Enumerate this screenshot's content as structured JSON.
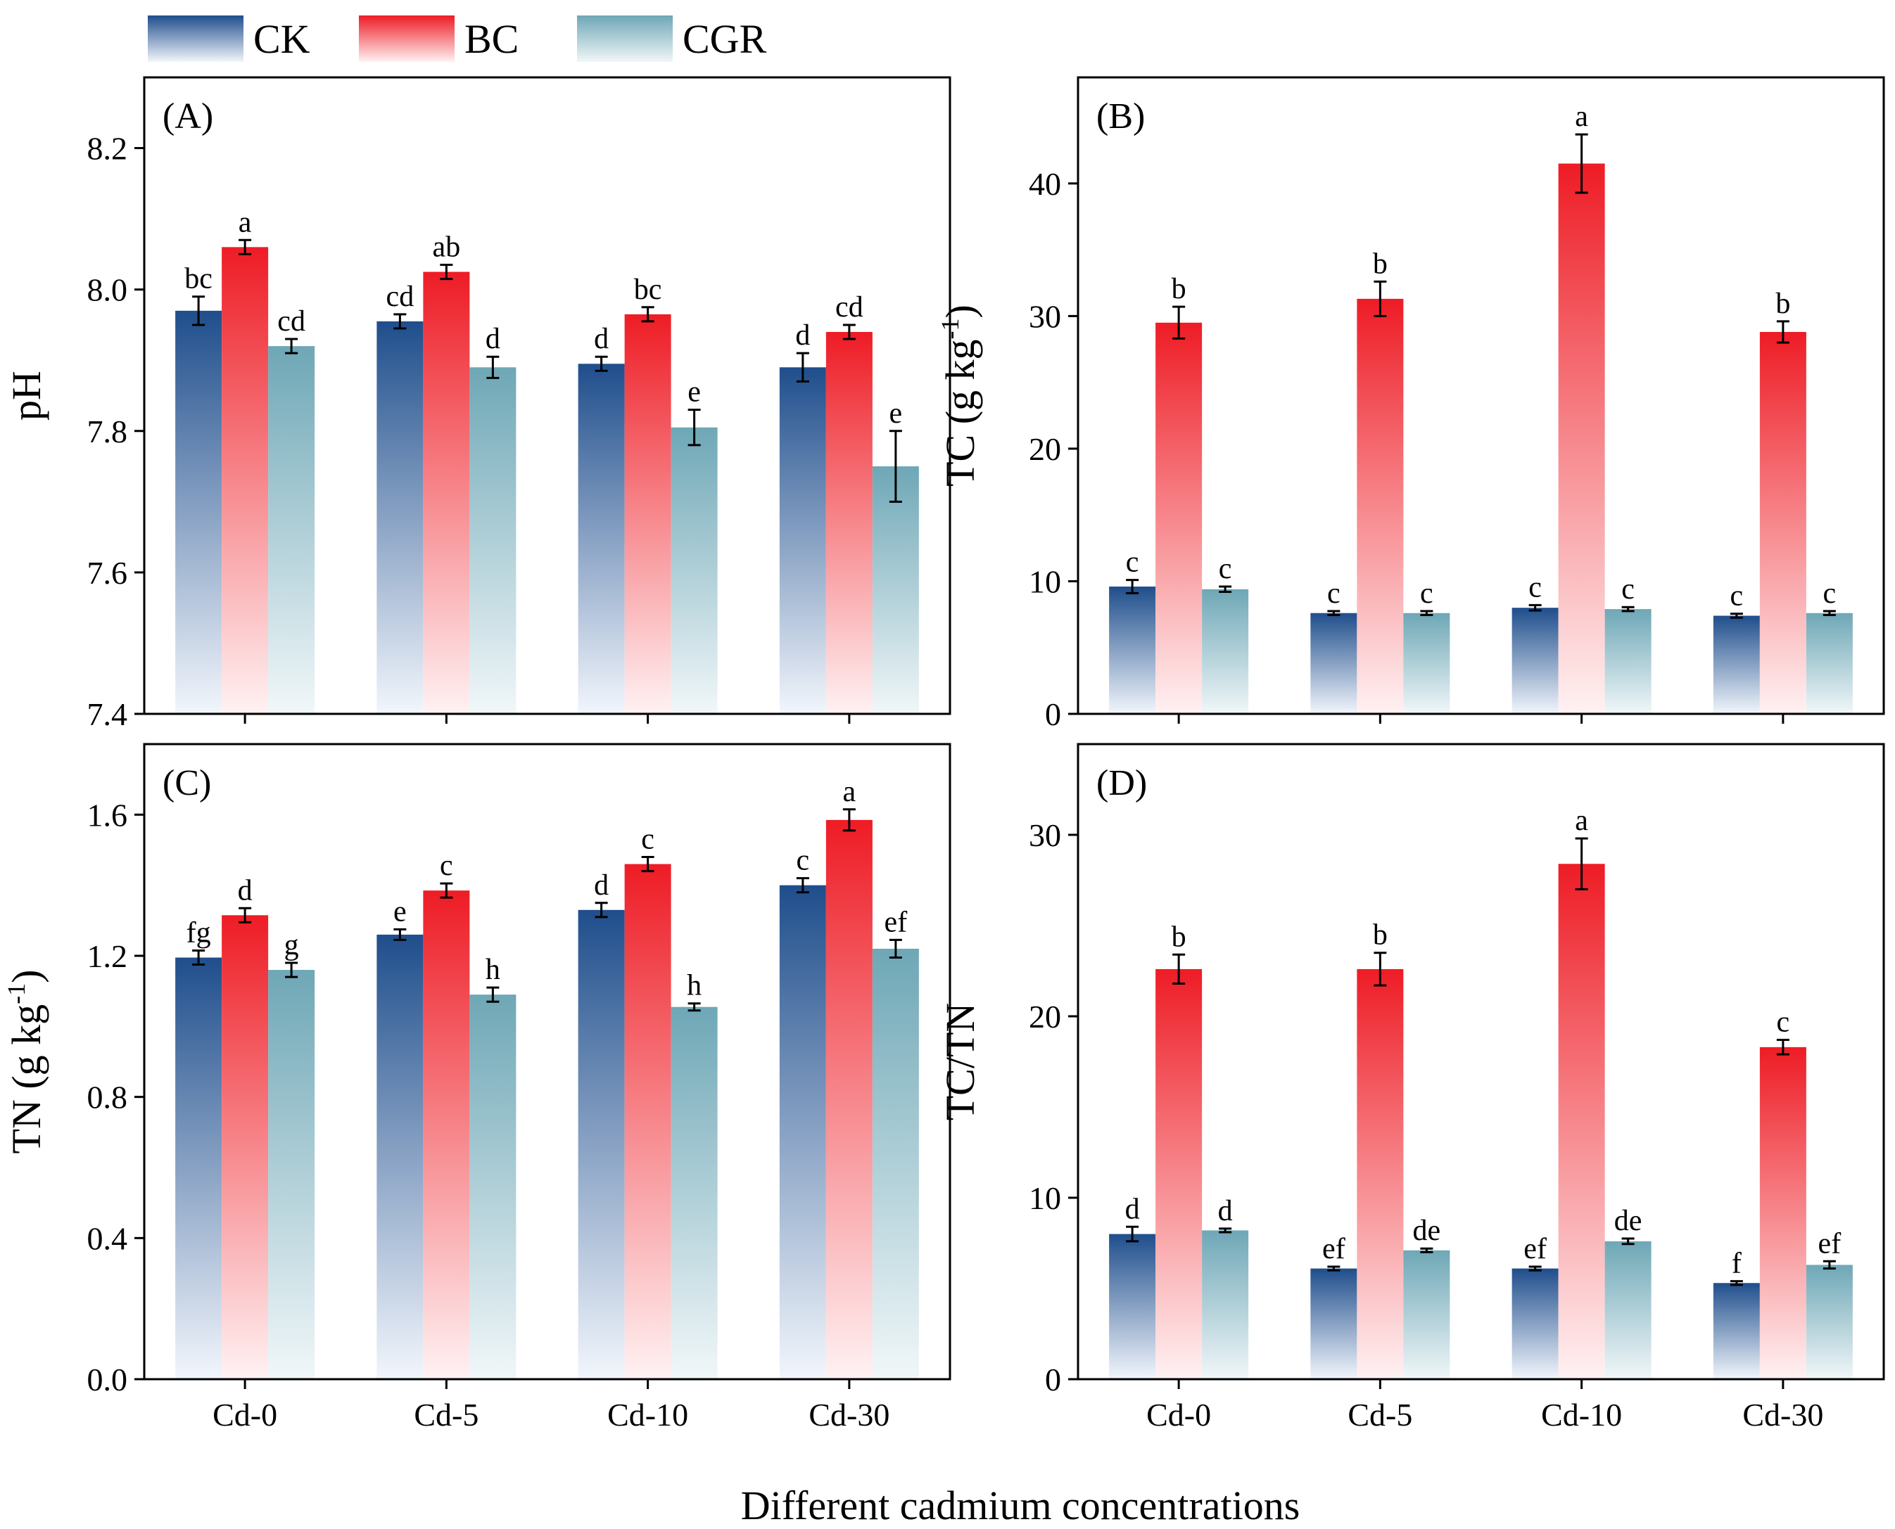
{
  "legend": [
    {
      "name": "CK",
      "top_color": "#1f4e8c",
      "bottom_color": "#f2f6fc"
    },
    {
      "name": "BC",
      "top_color": "#ee1c25",
      "bottom_color": "#fff2f3"
    },
    {
      "name": "CGR",
      "top_color": "#6ea7b6",
      "bottom_color": "#f1f7f9"
    }
  ],
  "x_axis_title": "Different cadmium concentrations",
  "chart_data": [
    {
      "type": "bar",
      "panel_label": "(A)",
      "ylabel_parts": [
        "pH"
      ],
      "categories": [
        "Cd-0",
        "Cd-5",
        "Cd-10",
        "Cd-30"
      ],
      "ylim": [
        7.4,
        8.3
      ],
      "yticks": [
        "7.4",
        "7.6",
        "7.8",
        "8.0",
        "8.2"
      ],
      "series": [
        {
          "name": "CK",
          "values": [
            7.97,
            7.955,
            7.895,
            7.89
          ],
          "errors": [
            0.02,
            0.01,
            0.01,
            0.02
          ],
          "letters": [
            "bc",
            "cd",
            "d",
            "d"
          ]
        },
        {
          "name": "BC",
          "values": [
            8.06,
            8.025,
            7.965,
            7.94
          ],
          "errors": [
            0.01,
            0.01,
            0.01,
            0.01
          ],
          "letters": [
            "a",
            "ab",
            "bc",
            "cd"
          ]
        },
        {
          "name": "CGR",
          "values": [
            7.92,
            7.89,
            7.805,
            7.75
          ],
          "errors": [
            0.01,
            0.015,
            0.025,
            0.05
          ],
          "letters": [
            "cd",
            "d",
            "e",
            "e"
          ]
        }
      ]
    },
    {
      "type": "bar",
      "panel_label": "(B)",
      "ylabel_parts": [
        "TC (g kg",
        "-1",
        ")"
      ],
      "categories": [
        "Cd-0",
        "Cd-5",
        "Cd-10",
        "Cd-30"
      ],
      "ylim": [
        0,
        48
      ],
      "yticks": [
        "0",
        "10",
        "20",
        "30",
        "40"
      ],
      "series": [
        {
          "name": "CK",
          "values": [
            9.6,
            7.6,
            8.0,
            7.4
          ],
          "errors": [
            0.5,
            0.15,
            0.2,
            0.15
          ],
          "letters": [
            "c",
            "c",
            "c",
            "c"
          ]
        },
        {
          "name": "BC",
          "values": [
            29.5,
            31.3,
            41.5,
            28.8
          ],
          "errors": [
            1.2,
            1.3,
            2.2,
            0.8
          ],
          "letters": [
            "b",
            "b",
            "a",
            "b"
          ]
        },
        {
          "name": "CGR",
          "values": [
            9.4,
            7.6,
            7.9,
            7.6
          ],
          "errors": [
            0.2,
            0.15,
            0.15,
            0.15
          ],
          "letters": [
            "c",
            "c",
            "c",
            "c"
          ]
        }
      ]
    },
    {
      "type": "bar",
      "panel_label": "(C)",
      "ylabel_parts": [
        "TN (g kg",
        "-1",
        ")"
      ],
      "categories": [
        "Cd-0",
        "Cd-5",
        "Cd-10",
        "Cd-30"
      ],
      "ylim": [
        0,
        1.8
      ],
      "yticks": [
        "0.0",
        "0.4",
        "0.8",
        "1.2",
        "1.6"
      ],
      "series": [
        {
          "name": "CK",
          "values": [
            1.195,
            1.26,
            1.33,
            1.4
          ],
          "errors": [
            0.02,
            0.015,
            0.02,
            0.02
          ],
          "letters": [
            "fg",
            "e",
            "d",
            "c"
          ]
        },
        {
          "name": "BC",
          "values": [
            1.315,
            1.385,
            1.46,
            1.585
          ],
          "errors": [
            0.02,
            0.02,
            0.02,
            0.03
          ],
          "letters": [
            "d",
            "c",
            "c",
            "a"
          ]
        },
        {
          "name": "CGR",
          "values": [
            1.16,
            1.09,
            1.055,
            1.22
          ],
          "errors": [
            0.02,
            0.02,
            0.01,
            0.025
          ],
          "letters": [
            "g",
            "h",
            "h",
            "ef"
          ]
        }
      ]
    },
    {
      "type": "bar",
      "panel_label": "(D)",
      "ylabel_parts": [
        "TC/TN"
      ],
      "categories": [
        "Cd-0",
        "Cd-5",
        "Cd-10",
        "Cd-30"
      ],
      "ylim": [
        0,
        35
      ],
      "yticks": [
        "0",
        "10",
        "20",
        "30"
      ],
      "series": [
        {
          "name": "CK",
          "values": [
            8.0,
            6.1,
            6.1,
            5.3
          ],
          "errors": [
            0.4,
            0.1,
            0.1,
            0.1
          ],
          "letters": [
            "d",
            "ef",
            "ef",
            "f"
          ]
        },
        {
          "name": "BC",
          "values": [
            22.6,
            22.6,
            28.4,
            18.3
          ],
          "errors": [
            0.8,
            0.9,
            1.4,
            0.4
          ],
          "letters": [
            "b",
            "b",
            "a",
            "c"
          ]
        },
        {
          "name": "CGR",
          "values": [
            8.2,
            7.1,
            7.6,
            6.3
          ],
          "errors": [
            0.1,
            0.1,
            0.15,
            0.2
          ],
          "letters": [
            "d",
            "de",
            "de",
            "ef"
          ]
        }
      ]
    }
  ]
}
